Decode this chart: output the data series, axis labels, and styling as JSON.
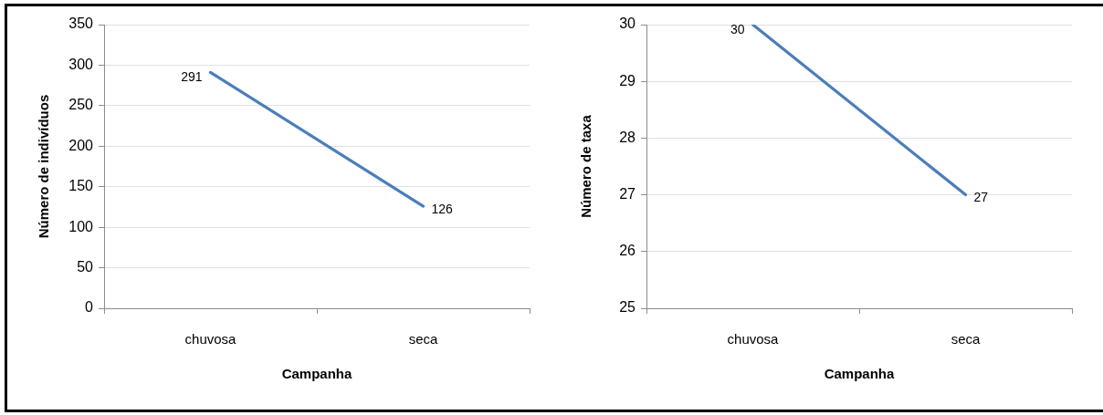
{
  "chart_data": [
    {
      "type": "line",
      "categories": [
        "chuvosa",
        "seca"
      ],
      "values": [
        291,
        126
      ],
      "color": "#4a7ebb",
      "xlabel": "Campanha",
      "ylabel": "Número de indivíduos",
      "ylim": [
        0,
        350
      ],
      "yticks": [
        0,
        50,
        100,
        150,
        200,
        250,
        300,
        350
      ],
      "grid": "y",
      "marker": "none",
      "data_labels": true
    },
    {
      "type": "line",
      "categories": [
        "chuvosa",
        "seca"
      ],
      "values": [
        30,
        27
      ],
      "color": "#4a7ebb",
      "xlabel": "Campanha",
      "ylabel": "Número de taxa",
      "ylim": [
        25,
        30
      ],
      "yticks": [
        25,
        26,
        27,
        28,
        29,
        30
      ],
      "grid": "y",
      "marker": "none",
      "data_labels": true
    }
  ]
}
